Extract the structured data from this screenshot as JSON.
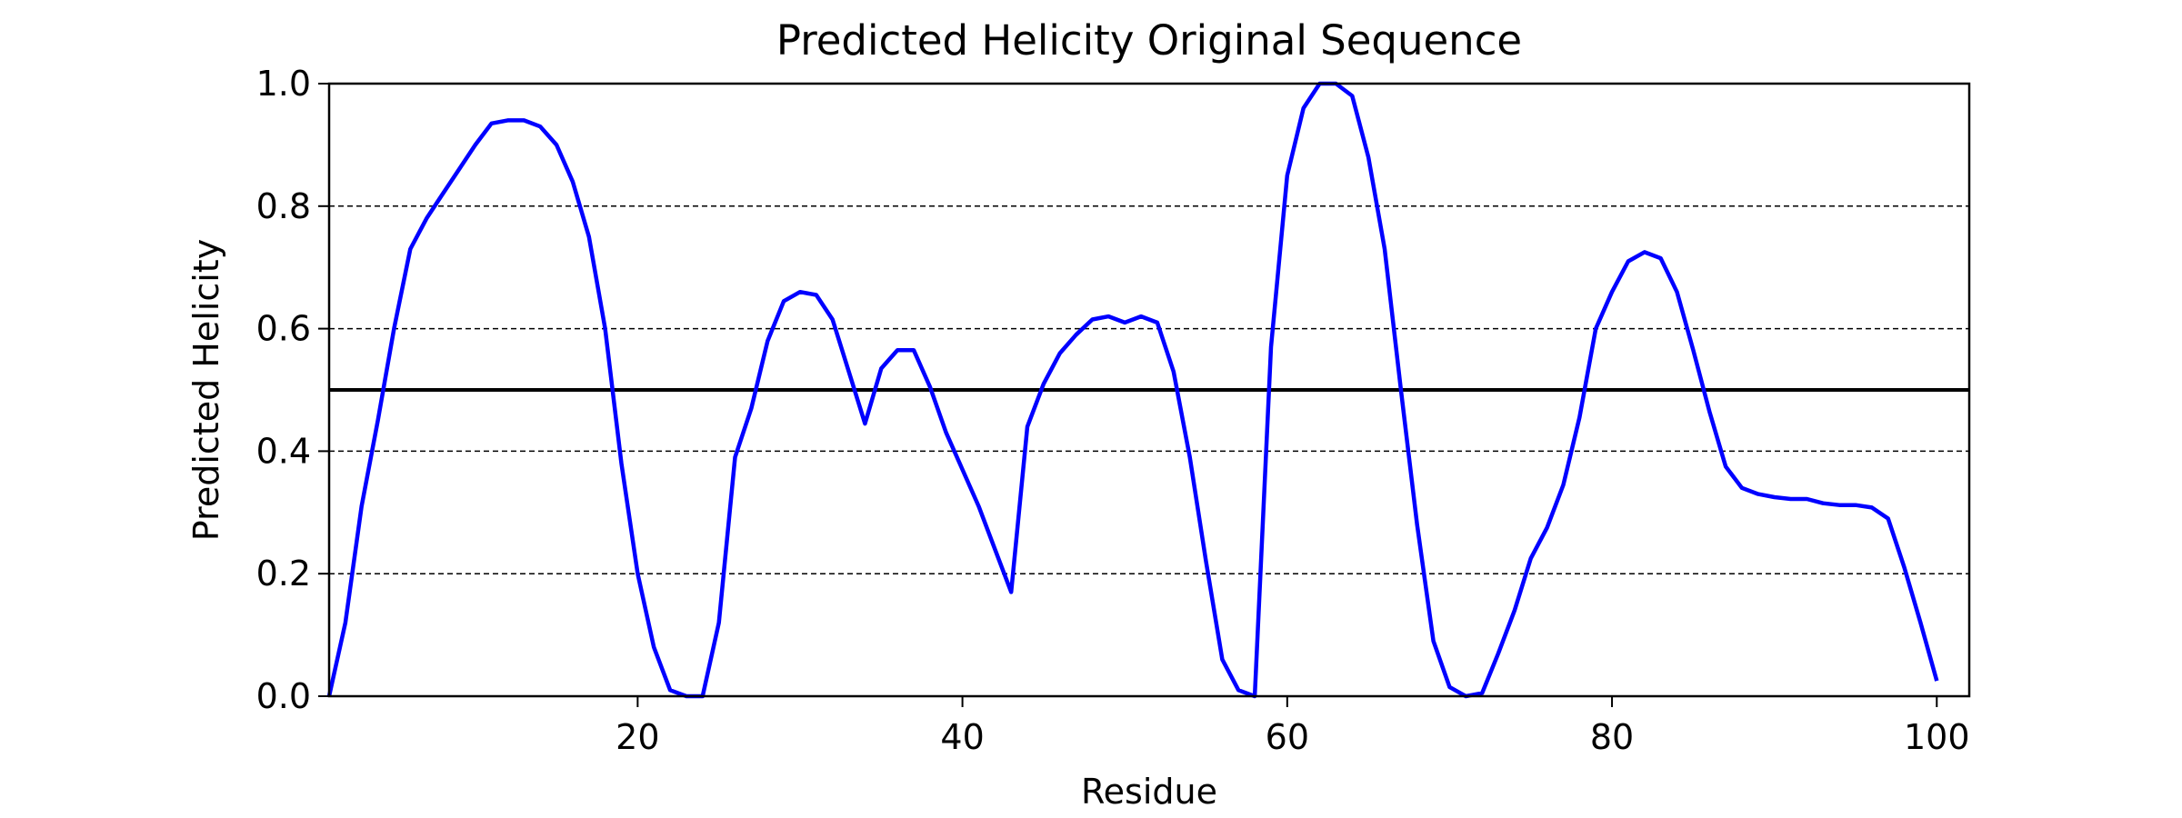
{
  "chart_data": {
    "type": "line",
    "title": "Predicted Helicity Original Sequence",
    "xlabel": "Residue",
    "ylabel": "Predicted Helicity",
    "xlim": [
      1,
      102
    ],
    "ylim": [
      0.0,
      1.0
    ],
    "xticks": [
      20,
      40,
      60,
      80,
      100
    ],
    "xtick_labels": [
      "20",
      "40",
      "60",
      "80",
      "100"
    ],
    "yticks": [
      0.0,
      0.2,
      0.4,
      0.6,
      0.8,
      1.0
    ],
    "ytick_labels": [
      "0.0",
      "0.2",
      "0.4",
      "0.6",
      "0.8",
      "1.0"
    ],
    "grid": {
      "axis": "y",
      "style": "dashed",
      "lines": [
        0.2,
        0.4,
        0.6,
        0.8
      ]
    },
    "threshold": 0.5,
    "series": [
      {
        "color": "#0000ff",
        "x": [
          1,
          2,
          3,
          4,
          5,
          6,
          7,
          8,
          9,
          10,
          11,
          12,
          13,
          14,
          15,
          16,
          17,
          18,
          19,
          20,
          21,
          22,
          23,
          24,
          25,
          26,
          27,
          28,
          29,
          30,
          31,
          32,
          33,
          34,
          35,
          36,
          37,
          38,
          39,
          40,
          41,
          42,
          43,
          44,
          45,
          46,
          47,
          48,
          49,
          50,
          51,
          52,
          53,
          54,
          55,
          56,
          57,
          58,
          59,
          60,
          61,
          62,
          63,
          64,
          65,
          66,
          67,
          68,
          69,
          70,
          71,
          72,
          73,
          74,
          75,
          76,
          77,
          78,
          79,
          80,
          81,
          82,
          83,
          84,
          85,
          86,
          87,
          88,
          89,
          90,
          91,
          92,
          93,
          94,
          95,
          96,
          97,
          98,
          99,
          100
        ],
        "y": [
          0.0,
          0.12,
          0.31,
          0.45,
          0.6,
          0.73,
          0.78,
          0.82,
          0.86,
          0.9,
          0.935,
          0.94,
          0.94,
          0.93,
          0.9,
          0.84,
          0.75,
          0.6,
          0.38,
          0.2,
          0.08,
          0.01,
          0.0,
          0.0,
          0.12,
          0.39,
          0.47,
          0.58,
          0.645,
          0.66,
          0.655,
          0.615,
          0.53,
          0.445,
          0.535,
          0.565,
          0.565,
          0.505,
          0.43,
          0.37,
          0.31,
          0.24,
          0.17,
          0.44,
          0.51,
          0.56,
          0.59,
          0.615,
          0.62,
          0.61,
          0.62,
          0.61,
          0.53,
          0.39,
          0.22,
          0.06,
          0.01,
          0.0,
          0.57,
          0.85,
          0.96,
          1.0,
          1.0,
          0.98,
          0.88,
          0.73,
          0.5,
          0.28,
          0.09,
          0.015,
          0.0,
          0.005,
          0.07,
          0.14,
          0.225,
          0.275,
          0.345,
          0.455,
          0.6,
          0.66,
          0.71,
          0.725,
          0.715,
          0.66,
          0.565,
          0.465,
          0.375,
          0.34,
          0.33,
          0.325,
          0.322,
          0.322,
          0.315,
          0.312,
          0.312,
          0.308,
          0.29,
          0.21,
          0.12,
          0.025
        ]
      }
    ]
  }
}
